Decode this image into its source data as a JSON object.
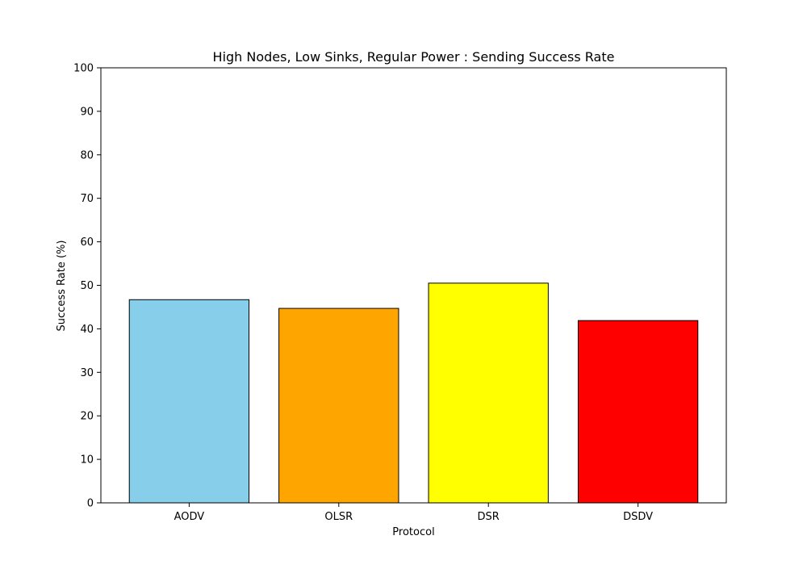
{
  "chart_data": {
    "type": "bar",
    "title": "High Nodes, Low Sinks, Regular Power : Sending Success Rate",
    "xlabel": "Protocol",
    "ylabel": "Success Rate (%)",
    "categories": [
      "AODV",
      "OLSR",
      "DSR",
      "DSDV"
    ],
    "values": [
      46.7,
      44.7,
      50.5,
      41.9
    ],
    "colors": [
      "#87CEEB",
      "#FFA500",
      "#FFFF00",
      "#FF0000"
    ],
    "edge_color": "#000000",
    "ylim": [
      0,
      100
    ],
    "yticks": [
      0,
      10,
      20,
      30,
      40,
      50,
      60,
      70,
      80,
      90,
      100
    ],
    "grid": false,
    "legend": "none"
  }
}
